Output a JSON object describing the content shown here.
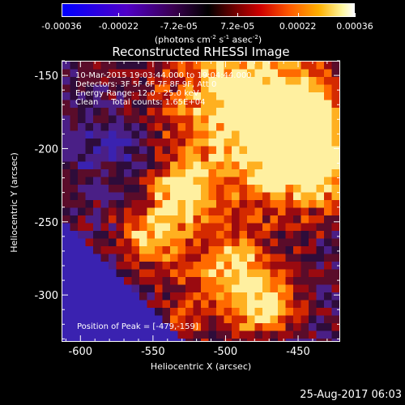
{
  "colorbar": {
    "ticks": [
      "-0.00036",
      "-0.00022",
      "-7.2e-05",
      "7.2e-05",
      "0.00022",
      "0.00036"
    ],
    "tick_values": [
      -0.00036,
      -0.00022,
      -7.2e-05,
      7.2e-05,
      0.00022,
      0.00036
    ],
    "unit_main": "(photons cm",
    "unit_exp1": "-2",
    "unit_mid": " s",
    "unit_exp2": "-1",
    "unit_mid2": " asec",
    "unit_exp3": "-2",
    "unit_end": ")"
  },
  "chart_data": {
    "type": "heatmap",
    "title": "Reconstructed RHESSI Image",
    "xlabel": "Heliocentric X (arcsec)",
    "ylabel": "Heliocentric Y (arcsec)",
    "xlim": [
      -613,
      -421
    ],
    "ylim": [
      -332,
      -140
    ],
    "xticks": [
      -600,
      -550,
      -500,
      -450
    ],
    "yticks": [
      -150,
      -200,
      -250,
      -300
    ],
    "colorbar_range": [
      -0.00036,
      0.00036
    ],
    "peak": [
      -479,
      -159
    ]
  },
  "info": {
    "line1": "10-Mar-2015 19:03:44.000 to 19:04:44.000",
    "line2": "Detectors: 3F 5F 6F 7F 8F 9F, Att 0",
    "line3": "Energy Range: 12.0 - 25.0 keV",
    "line4": "Clean     Total counts: 1.65E+04",
    "peak_label": "Position of Peak = [-479,-159]"
  },
  "footer": {
    "date": "25-Aug-2017 06:03"
  }
}
